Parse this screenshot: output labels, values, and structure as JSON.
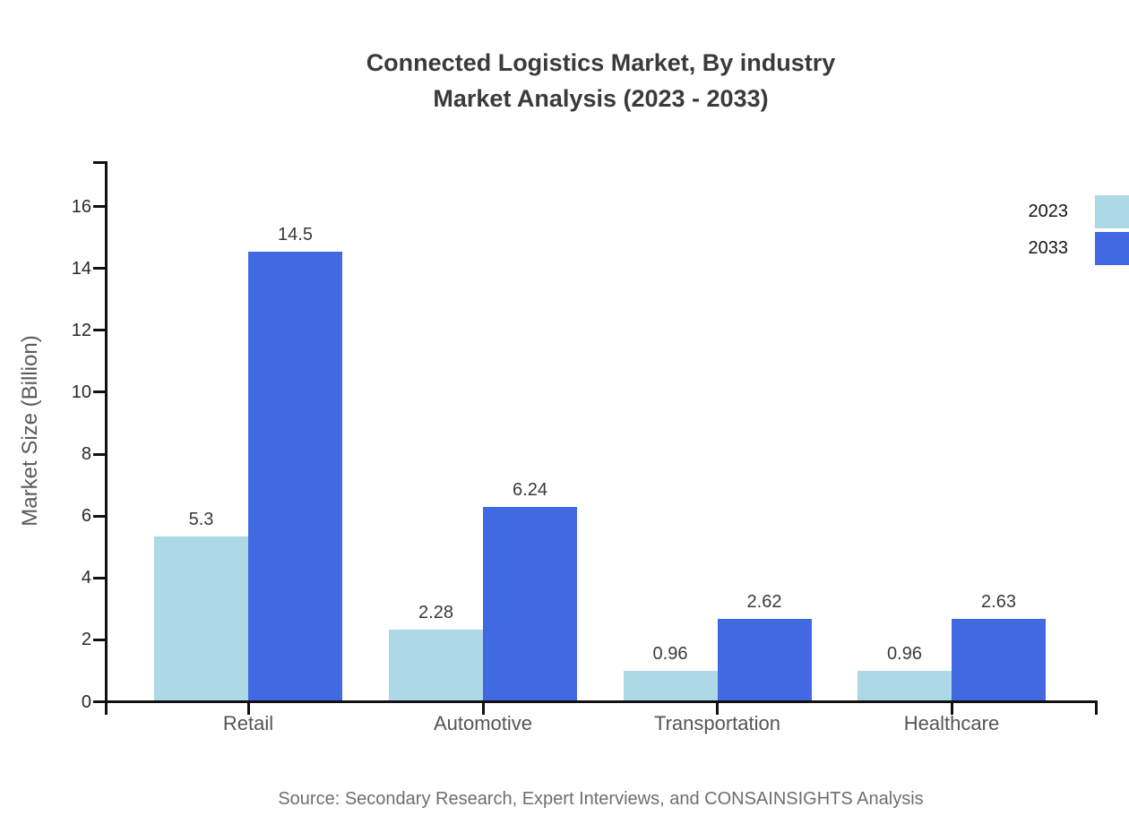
{
  "title": {
    "line1": "Connected Logistics Market, By industry",
    "line2": "Market Analysis (2023 - 2033)"
  },
  "source": "Source: Secondary Research, Expert Interviews, and CONSAINSIGHTS Analysis",
  "legend": {
    "items": [
      {
        "label": "2023",
        "color": "#ADD8E6"
      },
      {
        "label": "2033",
        "color": "#4169E1"
      }
    ]
  },
  "chart_data": {
    "type": "bar",
    "title": "Connected Logistics Market, By industry Market Analysis (2023 - 2033)",
    "categories": [
      "Retail",
      "Automotive",
      "Transportation",
      "Healthcare"
    ],
    "series": [
      {
        "name": "2023",
        "color": "#ADD8E6",
        "values": [
          5.3,
          2.28,
          0.96,
          0.96
        ]
      },
      {
        "name": "2033",
        "color": "#4169E1",
        "values": [
          14.5,
          6.24,
          2.62,
          2.63
        ]
      }
    ],
    "xlabel": "",
    "ylabel": "Market Size (Billion)",
    "ylim": [
      0,
      17.4
    ],
    "yticks": [
      0,
      2,
      4,
      6,
      8,
      10,
      12,
      14,
      16
    ],
    "grid": false,
    "legend_position": "top-right",
    "bar_value_labels": true
  },
  "colors": {
    "axis": "#111111",
    "title_text": "#3a3a3a",
    "tick_text": "#282828",
    "category_text": "#555555",
    "value_text": "#3a3a3a",
    "source_text": "#6e6e6e"
  }
}
